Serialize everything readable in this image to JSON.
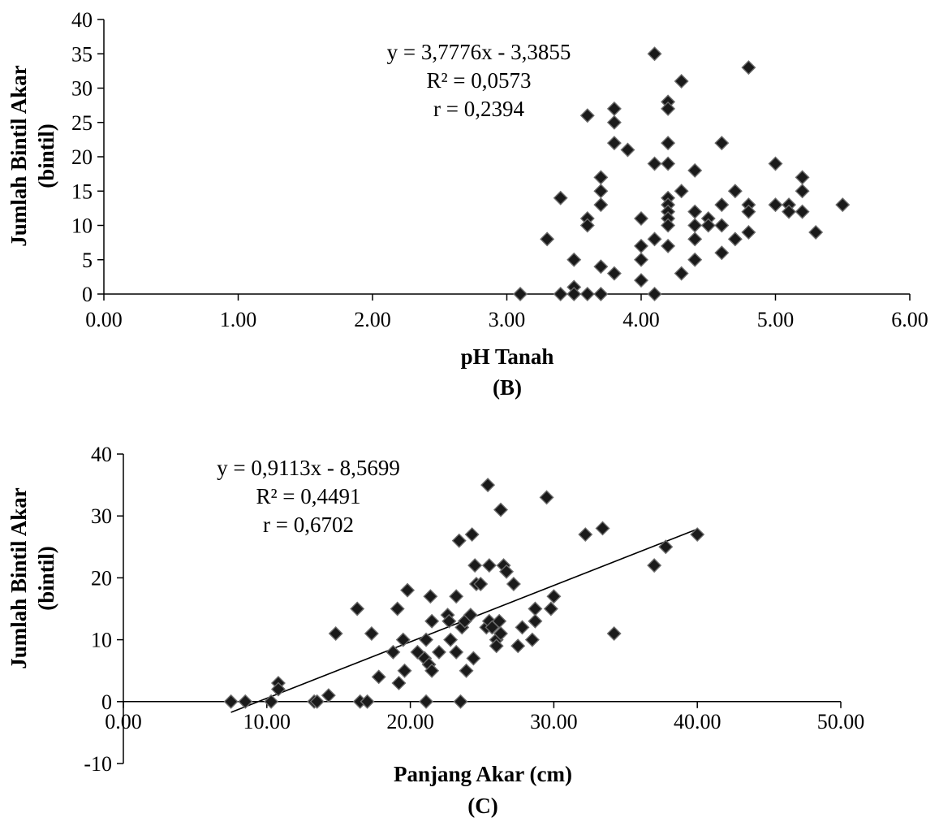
{
  "chart_data": [
    {
      "type": "scatter",
      "panel_label": "(B)",
      "xlabel": "pH Tanah",
      "ylabel_line1": "Jumlah Bintil Akar",
      "ylabel_line2": "(bintil)",
      "xlim": [
        0,
        6
      ],
      "ylim": [
        0,
        40
      ],
      "x_ticks": [
        0,
        1,
        2,
        3,
        4,
        5,
        6
      ],
      "x_tick_labels": [
        "0.00",
        "1.00",
        "2.00",
        "3.00",
        "4.00",
        "5.00",
        "6.00"
      ],
      "y_ticks": [
        0,
        5,
        10,
        15,
        20,
        25,
        30,
        35,
        40
      ],
      "y_tick_labels": [
        "0",
        "5",
        "10",
        "15",
        "20",
        "25",
        "30",
        "35",
        "40"
      ],
      "annotations": [
        "y = 3,7776x - 3,3855",
        "R² = 0,0573",
        "r = 0,2394"
      ],
      "trendline": false,
      "marker": "diamond",
      "points": [
        [
          3.1,
          0
        ],
        [
          3.3,
          8
        ],
        [
          3.4,
          14
        ],
        [
          3.4,
          0
        ],
        [
          3.5,
          5
        ],
        [
          3.5,
          1
        ],
        [
          3.5,
          0
        ],
        [
          3.6,
          26
        ],
        [
          3.6,
          11
        ],
        [
          3.6,
          10
        ],
        [
          3.6,
          0
        ],
        [
          3.7,
          17
        ],
        [
          3.7,
          15
        ],
        [
          3.7,
          13
        ],
        [
          3.7,
          4
        ],
        [
          3.7,
          0
        ],
        [
          3.8,
          27
        ],
        [
          3.8,
          25
        ],
        [
          3.8,
          22
        ],
        [
          3.8,
          3
        ],
        [
          3.9,
          21
        ],
        [
          4.0,
          11
        ],
        [
          4.0,
          7
        ],
        [
          4.0,
          5
        ],
        [
          4.0,
          2
        ],
        [
          4.1,
          35
        ],
        [
          4.1,
          19
        ],
        [
          4.1,
          8
        ],
        [
          4.1,
          0
        ],
        [
          4.2,
          28
        ],
        [
          4.2,
          27
        ],
        [
          4.2,
          22
        ],
        [
          4.2,
          19
        ],
        [
          4.2,
          14
        ],
        [
          4.2,
          13
        ],
        [
          4.2,
          12
        ],
        [
          4.2,
          11
        ],
        [
          4.2,
          10
        ],
        [
          4.2,
          7
        ],
        [
          4.3,
          31
        ],
        [
          4.3,
          15
        ],
        [
          4.3,
          3
        ],
        [
          4.4,
          18
        ],
        [
          4.4,
          12
        ],
        [
          4.4,
          10
        ],
        [
          4.4,
          8
        ],
        [
          4.4,
          5
        ],
        [
          4.5,
          11
        ],
        [
          4.5,
          10
        ],
        [
          4.6,
          22
        ],
        [
          4.6,
          13
        ],
        [
          4.6,
          10
        ],
        [
          4.6,
          6
        ],
        [
          4.7,
          15
        ],
        [
          4.7,
          8
        ],
        [
          4.8,
          33
        ],
        [
          4.8,
          13
        ],
        [
          4.8,
          12
        ],
        [
          4.8,
          9
        ],
        [
          5.0,
          19
        ],
        [
          5.0,
          13
        ],
        [
          5.1,
          13
        ],
        [
          5.1,
          12
        ],
        [
          5.2,
          17
        ],
        [
          5.2,
          15
        ],
        [
          5.2,
          12
        ],
        [
          5.3,
          9
        ],
        [
          5.5,
          13
        ]
      ]
    },
    {
      "type": "scatter",
      "panel_label": "(C)",
      "xlabel": "Panjang Akar (cm)",
      "ylabel_line1": "Jumlah Bintil Akar",
      "ylabel_line2": "(bintil)",
      "xlim": [
        0,
        50
      ],
      "ylim": [
        -10,
        40
      ],
      "x_ticks": [
        0,
        10,
        20,
        30,
        40,
        50
      ],
      "x_tick_labels": [
        "0.00",
        "10.00",
        "20.00",
        "30.00",
        "40.00",
        "50.00"
      ],
      "y_ticks": [
        -10,
        0,
        10,
        20,
        30,
        40
      ],
      "y_tick_labels": [
        "-10",
        "0",
        "10",
        "20",
        "30",
        "40"
      ],
      "annotations": [
        "y = 0,9113x - 8,5699",
        "R² = 0,4491",
        "r = 0,6702"
      ],
      "trendline": true,
      "trend_slope": 0.9113,
      "trend_intercept": -8.5699,
      "trend_x_range": [
        7.5,
        40
      ],
      "marker": "diamond",
      "points": [
        [
          7.5,
          0
        ],
        [
          8.5,
          0
        ],
        [
          10.3,
          0
        ],
        [
          10.8,
          3
        ],
        [
          10.8,
          2
        ],
        [
          13.3,
          0
        ],
        [
          13.5,
          0
        ],
        [
          14.3,
          1
        ],
        [
          14.8,
          11
        ],
        [
          16.3,
          15
        ],
        [
          16.5,
          0
        ],
        [
          17.0,
          0
        ],
        [
          17.3,
          11
        ],
        [
          17.8,
          4
        ],
        [
          18.8,
          8
        ],
        [
          19.1,
          15
        ],
        [
          19.2,
          3
        ],
        [
          19.5,
          10
        ],
        [
          19.6,
          5
        ],
        [
          19.8,
          18
        ],
        [
          20.5,
          8
        ],
        [
          21.0,
          7
        ],
        [
          21.1,
          10
        ],
        [
          21.1,
          0
        ],
        [
          21.3,
          6
        ],
        [
          21.4,
          17
        ],
        [
          21.5,
          13
        ],
        [
          21.5,
          5
        ],
        [
          22.0,
          8
        ],
        [
          22.6,
          14
        ],
        [
          22.7,
          13
        ],
        [
          22.8,
          10
        ],
        [
          23.2,
          8
        ],
        [
          23.2,
          17
        ],
        [
          23.4,
          26
        ],
        [
          23.5,
          0
        ],
        [
          23.6,
          12
        ],
        [
          23.8,
          13
        ],
        [
          23.9,
          5
        ],
        [
          24.2,
          14
        ],
        [
          24.3,
          27
        ],
        [
          24.4,
          7
        ],
        [
          24.5,
          22
        ],
        [
          24.6,
          19
        ],
        [
          24.9,
          19
        ],
        [
          25.3,
          12
        ],
        [
          25.4,
          35
        ],
        [
          25.5,
          22
        ],
        [
          25.5,
          13
        ],
        [
          25.7,
          12
        ],
        [
          26.0,
          10
        ],
        [
          26.0,
          9
        ],
        [
          26.2,
          13
        ],
        [
          26.3,
          31
        ],
        [
          26.3,
          11
        ],
        [
          26.5,
          22
        ],
        [
          26.7,
          21
        ],
        [
          27.2,
          19
        ],
        [
          27.5,
          9
        ],
        [
          27.8,
          12
        ],
        [
          28.5,
          10
        ],
        [
          28.7,
          15
        ],
        [
          28.7,
          13
        ],
        [
          29.5,
          33
        ],
        [
          29.8,
          15
        ],
        [
          30.0,
          17
        ],
        [
          32.2,
          27
        ],
        [
          33.4,
          28
        ],
        [
          34.2,
          11
        ],
        [
          37.0,
          22
        ],
        [
          37.8,
          25
        ],
        [
          40.0,
          27
        ]
      ]
    }
  ]
}
